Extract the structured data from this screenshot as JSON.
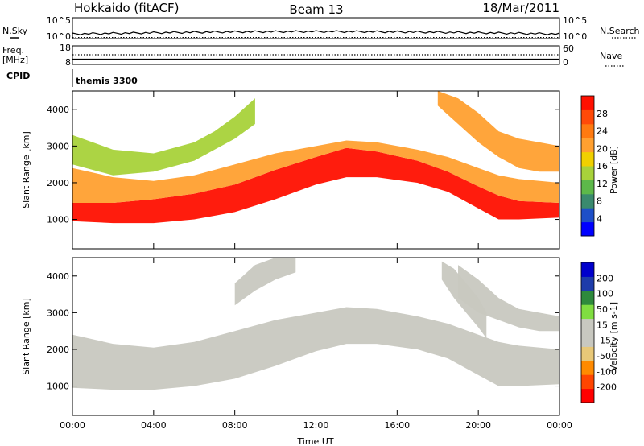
{
  "header": {
    "station": "Hokkaido (fitACF)",
    "beam": "Beam 13",
    "date": "18/Mar/2011"
  },
  "top_panels": {
    "nsky_label": "N.Sky",
    "nsky_ticks": [
      "10^5",
      "10^0"
    ],
    "nsearch_label": "N.Search",
    "nsearch_ticks": [
      "10^5",
      "10^0"
    ],
    "freq_label": "Freq.",
    "freq_unit": "[MHz]",
    "freq_ticks": [
      "18",
      "8"
    ],
    "nave_label": "Nave",
    "nave_ticks": [
      "60",
      "0"
    ],
    "cpid_label": "CPID",
    "cpid_value": "themis 3300"
  },
  "chart_data": [
    {
      "type": "heatmap",
      "name": "power-panel",
      "ylabel": "Slant Range [km]",
      "xlabel": "",
      "xlim": [
        0,
        24
      ],
      "ylim": [
        200,
        4500
      ],
      "y_ticks": [
        1000,
        2000,
        3000,
        4000
      ],
      "colorbar": {
        "label": "Power [dB]",
        "ticks": [
          "28",
          "24",
          "20",
          "16",
          "12",
          "8",
          "4"
        ],
        "range": [
          0,
          32
        ],
        "colors": [
          "#0000ff",
          "#1e4fc8",
          "#3a8a6e",
          "#5db84a",
          "#a8d23a",
          "#f0d000",
          "#ffa030",
          "#ff7a10",
          "#ff4a08",
          "#ff1000"
        ]
      },
      "bands": [
        {
          "x": [
            0,
            2,
            4,
            6,
            8,
            10,
            12,
            13.5,
            15,
            17,
            18.5,
            20,
            21,
            22,
            24
          ],
          "y_low": [
            950,
            900,
            900,
            1000,
            1200,
            1550,
            1950,
            2150,
            2150,
            2000,
            1750,
            1300,
            1000,
            1000,
            1050
          ],
          "y_high": [
            1450,
            1450,
            1550,
            1700,
            1950,
            2350,
            2700,
            2950,
            2850,
            2600,
            2300,
            1900,
            1650,
            1500,
            1450
          ],
          "level": 30
        },
        {
          "x": [
            0,
            2,
            4,
            6,
            8,
            10,
            12,
            13.5,
            15,
            17,
            18.5,
            20,
            21,
            22,
            24
          ],
          "y_low": [
            1450,
            1450,
            1550,
            1700,
            1950,
            2350,
            2700,
            2950,
            2850,
            2600,
            2300,
            1900,
            1650,
            1500,
            1450
          ],
          "y_high": [
            2400,
            2150,
            2050,
            2200,
            2500,
            2800,
            3000,
            3150,
            3100,
            2900,
            2700,
            2400,
            2200,
            2100,
            2000
          ],
          "level": 20
        },
        {
          "x": [
            0,
            2,
            4,
            6,
            7,
            8,
            9
          ],
          "y_low": [
            2500,
            2200,
            2300,
            2600,
            2900,
            3200,
            3600
          ],
          "y_high": [
            3300,
            2900,
            2800,
            3100,
            3400,
            3800,
            4300
          ],
          "level": 14
        },
        {
          "x": [
            18,
            19,
            20,
            21,
            22,
            23,
            24
          ],
          "y_low": [
            4100,
            3600,
            3100,
            2700,
            2400,
            2300,
            2300
          ],
          "y_high": [
            4500,
            4300,
            3900,
            3400,
            3200,
            3100,
            3000
          ],
          "level": 22
        }
      ]
    },
    {
      "type": "heatmap",
      "name": "velocity-panel",
      "ylabel": "Slant Range [km]",
      "xlabel": "Time UT",
      "xlim": [
        0,
        24
      ],
      "ylim": [
        200,
        4500
      ],
      "x_ticks": [
        "00:00",
        "04:00",
        "08:00",
        "12:00",
        "16:00",
        "20:00",
        "00:00"
      ],
      "y_ticks": [
        1000,
        2000,
        3000,
        4000
      ],
      "colorbar": {
        "label": "Velocity [m s-1]",
        "ticks": [
          "200",
          "100",
          "50",
          "15",
          "-15",
          "-50",
          "-100",
          "-200"
        ],
        "range": [
          -250,
          250
        ],
        "colors": [
          "#ff0000",
          "#ff4500",
          "#ff8a00",
          "#e8c878",
          "#c8c8c0",
          "#c8c8c0",
          "#80dd40",
          "#2e8a3c",
          "#1e3caa",
          "#0000cc"
        ]
      },
      "bands": [
        {
          "x": [
            0,
            2,
            4,
            6,
            8,
            10,
            12,
            13.5,
            15,
            17,
            18.5,
            20,
            21,
            22,
            24
          ],
          "y_low": [
            950,
            900,
            900,
            1000,
            1200,
            1550,
            1950,
            2150,
            2150,
            2000,
            1750,
            1300,
            1000,
            1000,
            1050
          ],
          "y_high": [
            2400,
            2150,
            2050,
            2200,
            2500,
            2800,
            3000,
            3150,
            3100,
            2900,
            2700,
            2400,
            2200,
            2100,
            2000
          ],
          "level": 0
        },
        {
          "x": [
            8,
            9,
            10,
            11
          ],
          "y_low": [
            3200,
            3600,
            3900,
            4100
          ],
          "y_high": [
            3800,
            4300,
            4500,
            4500
          ],
          "level": 0
        },
        {
          "x": [
            19,
            20,
            21,
            22,
            23,
            24
          ],
          "y_low": [
            3400,
            3000,
            2800,
            2600,
            2500,
            2500
          ],
          "y_high": [
            4300,
            3900,
            3400,
            3100,
            3000,
            2900
          ],
          "level": 0
        },
        {
          "x": [
            18.2,
            18.8,
            19.4,
            20,
            20.4
          ],
          "y_low": [
            3900,
            3400,
            3000,
            2600,
            2300
          ],
          "y_high": [
            4400,
            4200,
            3800,
            3400,
            3000
          ],
          "level": 30
        }
      ]
    }
  ]
}
